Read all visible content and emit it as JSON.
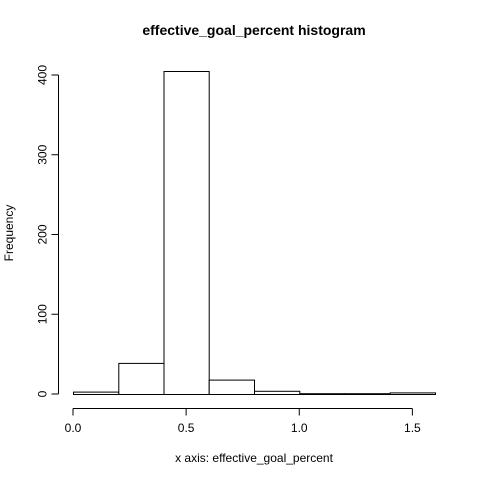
{
  "chart_data": {
    "type": "bar",
    "title": "effective_goal_percent histogram",
    "xlabel": "x axis: effective_goal_percent",
    "ylabel": "Frequency",
    "bins": [
      {
        "start": 0.0,
        "end": 0.2,
        "count": 3
      },
      {
        "start": 0.2,
        "end": 0.4,
        "count": 39
      },
      {
        "start": 0.4,
        "end": 0.6,
        "count": 405
      },
      {
        "start": 0.6,
        "end": 0.8,
        "count": 18
      },
      {
        "start": 0.8,
        "end": 1.0,
        "count": 4
      },
      {
        "start": 1.0,
        "end": 1.2,
        "count": 1
      },
      {
        "start": 1.2,
        "end": 1.4,
        "count": 1
      },
      {
        "start": 1.4,
        "end": 1.6,
        "count": 2
      }
    ],
    "xlim": [
      0.0,
      1.6
    ],
    "ylim": [
      0,
      400
    ],
    "x_ticks": [
      {
        "value": 0.0,
        "label": "0.0"
      },
      {
        "value": 0.5,
        "label": "0.5"
      },
      {
        "value": 1.0,
        "label": "1.0"
      },
      {
        "value": 1.5,
        "label": "1.5"
      }
    ],
    "y_ticks": [
      {
        "value": 0,
        "label": "0"
      },
      {
        "value": 100,
        "label": "100"
      },
      {
        "value": 200,
        "label": "200"
      },
      {
        "value": 300,
        "label": "300"
      },
      {
        "value": 400,
        "label": "400"
      }
    ],
    "grid": false,
    "colors": {
      "bar_fill": "#ffffff",
      "bar_stroke": "#000000",
      "background": "#ffffff"
    }
  }
}
